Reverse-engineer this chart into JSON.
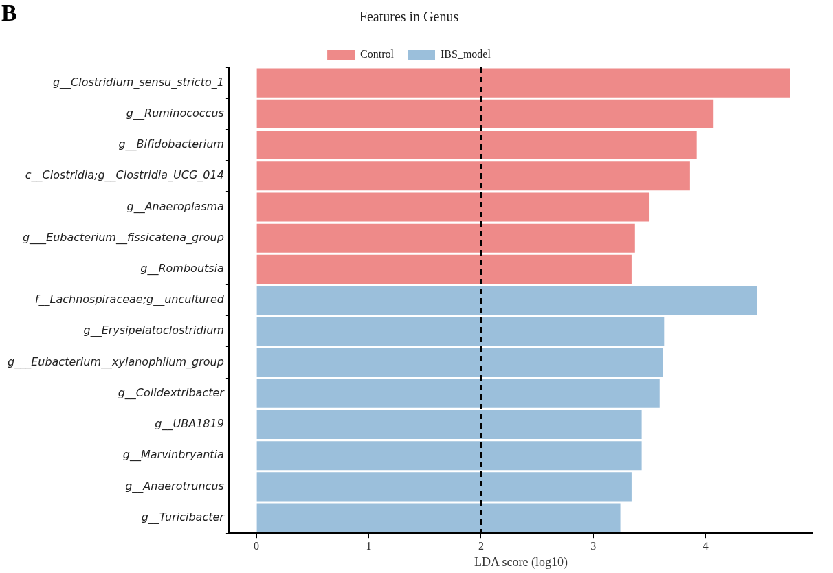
{
  "chart_data": {
    "type": "bar",
    "orientation": "horizontal",
    "stacked": true,
    "title": "Features in Genus",
    "xlabel": "LDA score (log10)",
    "categories": [
      "g__Clostridium_sensu_stricto_1",
      "g__Ruminococcus",
      "g__Bifidobacterium",
      "c__Clostridia;g__Clostridia_UCG_014",
      "g__Anaeroplasma",
      "g___Eubacterium__fissicatena_group",
      "g__Romboutsia",
      "f__Lachnospiraceae;g__uncultured",
      "g__Erysipelatoclostridium",
      "g___Eubacterium__xylanophilum_group",
      "g__Colidextribacter",
      "g__UBA1819",
      "g__Marvinbryantia",
      "g__Anaerotruncus",
      "g__Turicibacter"
    ],
    "series": [
      {
        "name": "Control",
        "color": "#ee8a89",
        "values": [
          4.75,
          4.07,
          3.92,
          3.86,
          3.5,
          3.37,
          3.34,
          null,
          null,
          null,
          null,
          null,
          null,
          null,
          null
        ]
      },
      {
        "name": "IBS_model",
        "color": "#9bbfdb",
        "values": [
          null,
          null,
          null,
          null,
          null,
          null,
          null,
          4.46,
          3.63,
          3.62,
          3.59,
          3.43,
          3.43,
          3.34,
          3.24
        ]
      }
    ],
    "xlim": [
      -0.24,
      4.95
    ],
    "xticks": [
      0,
      1,
      2,
      3,
      4
    ],
    "ref_lines": [
      {
        "axis": "x",
        "value": 2,
        "color": "#000000",
        "line_style": "dashed"
      }
    ],
    "legend": "top",
    "annotations": [
      "B"
    ]
  }
}
